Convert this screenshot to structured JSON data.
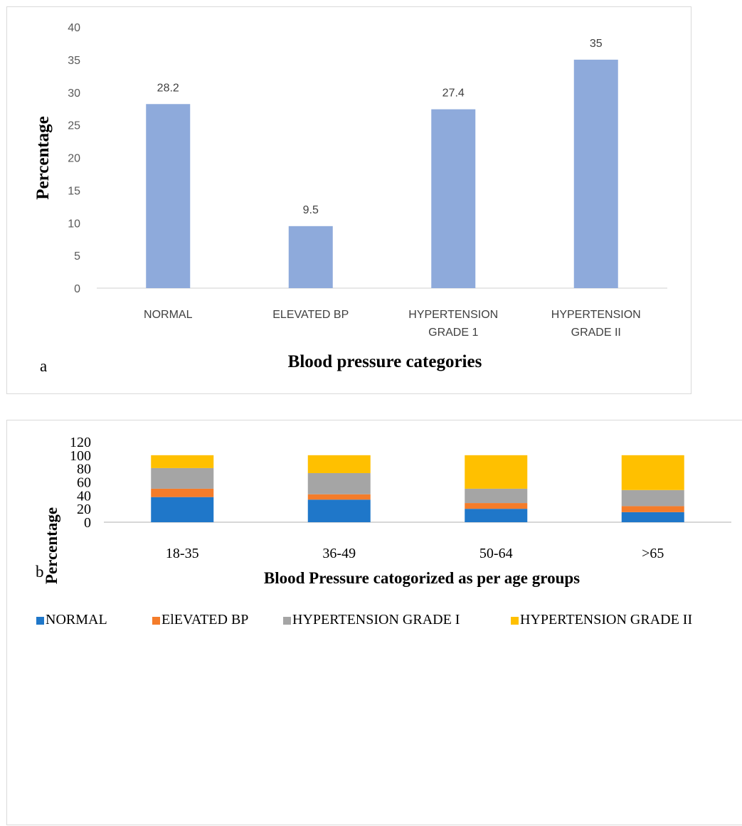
{
  "chart_data": [
    {
      "type": "bar",
      "panel_letter": "a",
      "categories": [
        [
          "NORMAL"
        ],
        [
          "ELEVATED BP"
        ],
        [
          "HYPERTENSION",
          "GRADE 1"
        ],
        [
          "HYPERTENSION",
          "GRADE II"
        ]
      ],
      "values": [
        28.2,
        9.5,
        27.4,
        35
      ],
      "data_labels": [
        "28.2",
        "9.5",
        "27.4",
        "35"
      ],
      "xlabel": "Blood pressure categories",
      "ylabel": "Percentage",
      "ylim": [
        0,
        40
      ],
      "yticks": [
        0,
        5,
        10,
        15,
        20,
        25,
        30,
        35,
        40
      ],
      "grid": false,
      "bar_color": "#8eaadb"
    },
    {
      "type": "bar",
      "stacked": true,
      "panel_letter": "b",
      "categories": [
        "18-35",
        "36-49",
        "50-64",
        ">65"
      ],
      "series": [
        {
          "name": "NORMAL",
          "color": "#1f77c9",
          "values": [
            37.5,
            33.7,
            20,
            15
          ]
        },
        {
          "name": "ElEVATED BP",
          "color": "#f47c2a",
          "values": [
            12.5,
            8,
            8.6,
            9
          ]
        },
        {
          "name": "HYPERTENSION GRADE I",
          "color": "#a5a5a5",
          "values": [
            30.8,
            31.6,
            21.4,
            24
          ]
        },
        {
          "name": "HYPERTENSION GRADE II",
          "color": "#ffc000",
          "values": [
            19.2,
            26.7,
            50,
            52
          ]
        }
      ],
      "xlabel": "Blood Pressure catogorized as per age groups",
      "ylabel": "Percentage",
      "ylim": [
        0,
        120
      ],
      "yticks": [
        0,
        20,
        40,
        60,
        80,
        100,
        120
      ],
      "legend_position": "bottom",
      "grid": false
    }
  ]
}
